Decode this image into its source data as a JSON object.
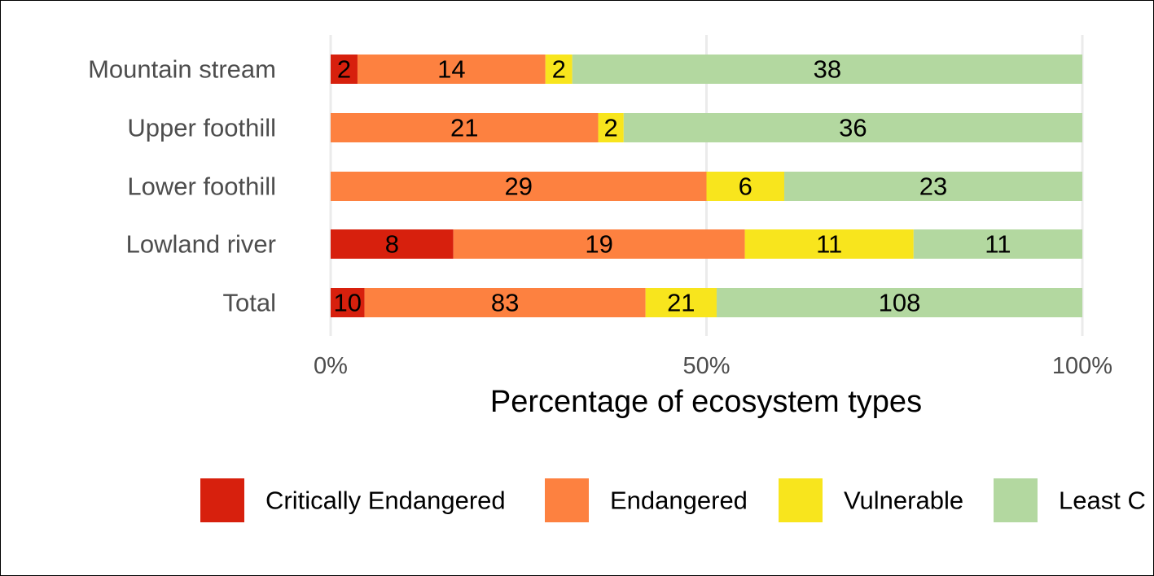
{
  "chart_data": {
    "type": "bar",
    "orientation": "horizontal",
    "stacked": true,
    "normalized": true,
    "categories": [
      "Mountain stream",
      "Upper foothill",
      "Lower foothill",
      "Lowland river",
      "Total"
    ],
    "series": [
      {
        "name": "Critically Endangered",
        "color": "#d7200d",
        "values": [
          2,
          0,
          0,
          8,
          10
        ]
      },
      {
        "name": "Endangered",
        "color": "#fd8140",
        "values": [
          14,
          21,
          29,
          19,
          83
        ]
      },
      {
        "name": "Vulnerable",
        "color": "#f8e51d",
        "values": [
          2,
          2,
          6,
          11,
          21
        ]
      },
      {
        "name": "Least Concern",
        "color": "#b3d8a0",
        "values": [
          38,
          36,
          23,
          11,
          108
        ]
      }
    ],
    "xlabel": "Percentage of ecosystem types",
    "ylabel": "",
    "xlim": [
      0,
      100
    ],
    "x_ticks": [
      "0%",
      "50%",
      "100%"
    ],
    "legend": {
      "position": "bottom",
      "labels": [
        "Critically Endangered",
        "Endangered",
        "Vulnerable",
        "Least C"
      ]
    },
    "grid": "vertical"
  }
}
